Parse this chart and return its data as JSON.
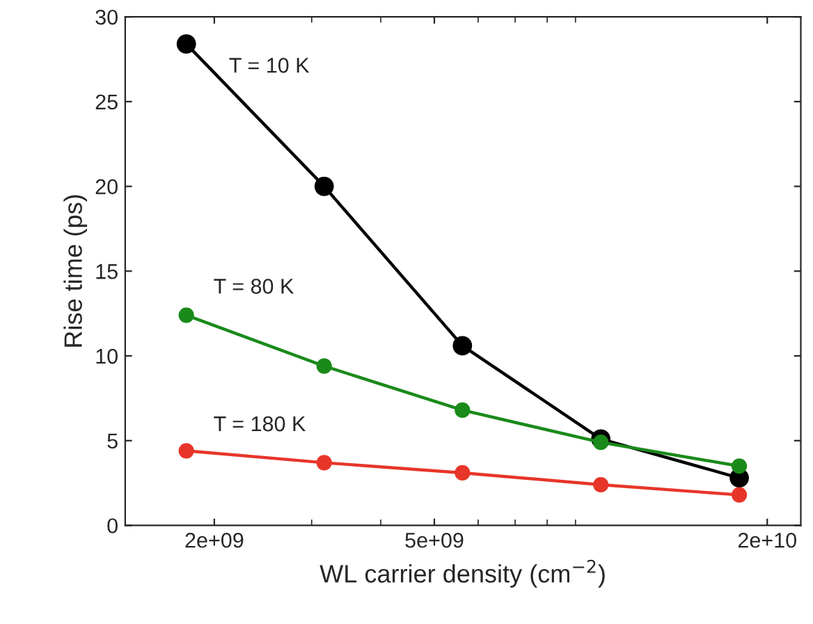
{
  "chart_data": {
    "type": "line",
    "xlabel": "WL carrier density (cm$^{−2}$)",
    "ylabel": "Rise time (ps)",
    "log": "x",
    "x": [
      1780000000.0,
      3160000000.0,
      5620000000.0,
      10000000000.0,
      17800000000.0
    ],
    "series": [
      {
        "name": "T = 10 K",
        "color": "#000000",
        "values": [
          28.4,
          20.0,
          10.6,
          5.1,
          2.8
        ]
      },
      {
        "name": "T = 80 K",
        "color": "#1a8a1a",
        "values": [
          12.4,
          9.4,
          6.8,
          4.9,
          3.5
        ]
      },
      {
        "name": "T = 180 K",
        "color": "#e8352a",
        "values": [
          4.4,
          3.7,
          3.1,
          2.4,
          1.8
        ]
      }
    ],
    "xlim": [
      1380000000.0,
      23000000000.0
    ],
    "xticks": [
      {
        "value": 2000000000.0,
        "label": "2e+09"
      },
      {
        "value": 5000000000.0,
        "label": "5e+09"
      },
      {
        "value": 20000000000.0,
        "label": "2e+10"
      }
    ],
    "ylim": [
      0,
      30
    ],
    "yticks": [
      0,
      5,
      10,
      15,
      20,
      25,
      30
    ],
    "marker": "circle",
    "line_style": "solid",
    "grid": false,
    "legend": false
  }
}
